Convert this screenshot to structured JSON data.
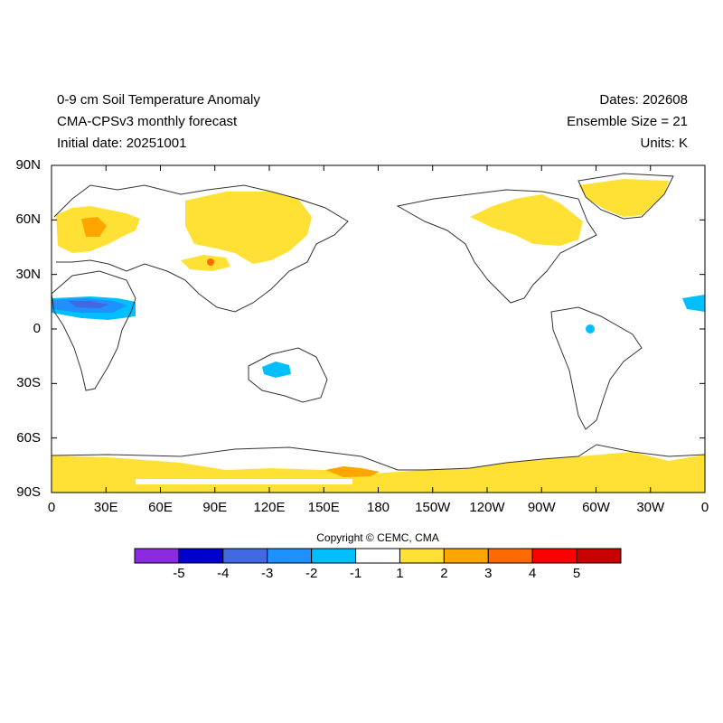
{
  "header": {
    "title": "0-9 cm Soil Temperature Anomaly",
    "subtitle": "CMA-CPSv3 monthly forecast",
    "initial_date": "Initial date: 20251001",
    "dates": "Dates: 202608",
    "ensemble": "Ensemble Size = 21",
    "units": "Units: K"
  },
  "lat_labels": [
    "90N",
    "60N",
    "30N",
    "0",
    "30S",
    "60S",
    "90S"
  ],
  "lon_labels": [
    "0",
    "30E",
    "60E",
    "90E",
    "120E",
    "150E",
    "180",
    "150W",
    "120W",
    "90W",
    "60W",
    "30W",
    "0"
  ],
  "copyright": "Copyright © CEMC, CMA",
  "colorbar": {
    "colors": [
      "#8a2be2",
      "#0000cd",
      "#4169e1",
      "#1e90ff",
      "#00bfff",
      "#ffffff",
      "#ffe135",
      "#ffa500",
      "#ff6a00",
      "#ff0000",
      "#c80000"
    ],
    "labels": [
      "-5",
      "-4",
      "-3",
      "-2",
      "-1",
      "1",
      "2",
      "3",
      "4",
      "5"
    ]
  },
  "chart_data": {
    "type": "heatmap",
    "projection": "equirectangular, centered 180",
    "lon_range": [
      0,
      360
    ],
    "lat_range": [
      -90,
      90
    ],
    "variable": "0-9 cm Soil Temperature Anomaly",
    "units": "K",
    "levels": [
      -5,
      -4,
      -3,
      -2,
      -1,
      1,
      2,
      3,
      4,
      5
    ],
    "warm_regions_1_2K": [
      "Europe and western Russia",
      "Central Siberia",
      "Tibetan Plateau",
      "Eastern Canada and Greenland",
      "Antarctica coastal margins"
    ],
    "warm_regions_3_4K": [
      "Tibetan Plateau spot",
      "Ross Ice Shelf area"
    ],
    "cool_regions_minus1_minus3K": [
      "Sahel belt of Africa",
      "Central Australia",
      "Northern South America",
      "Western Africa Atlantic edge"
    ]
  }
}
